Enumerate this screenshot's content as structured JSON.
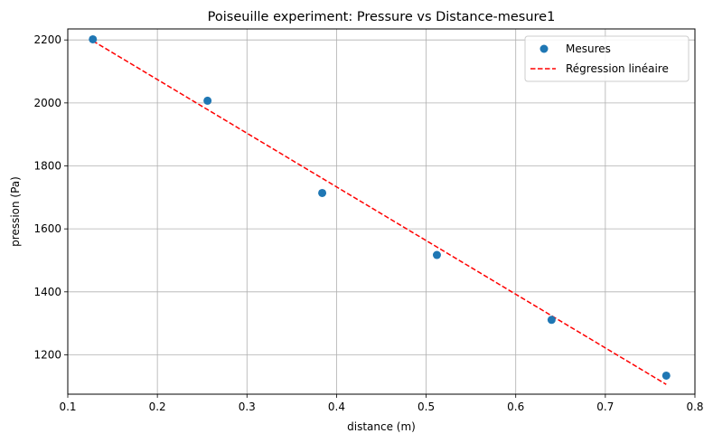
{
  "chart_data": {
    "type": "scatter",
    "title": "Poiseuille experiment: Pressure vs Distance-mesure1",
    "xlabel": "distance (m)",
    "ylabel": "pression (Pa)",
    "xlim": [
      0.1,
      0.8
    ],
    "ylim": [
      1075,
      2235
    ],
    "x_ticks": [
      "0.1",
      "0.2",
      "0.3",
      "0.4",
      "0.5",
      "0.6",
      "0.7",
      "0.8"
    ],
    "x_tick_values": [
      0.1,
      0.2,
      0.3,
      0.4,
      0.5,
      0.6,
      0.7,
      0.8
    ],
    "y_ticks": [
      "1200",
      "1400",
      "1600",
      "1800",
      "2000",
      "2200"
    ],
    "y_tick_values": [
      1200,
      1400,
      1600,
      1800,
      2000,
      2200
    ],
    "grid": true,
    "legend_position": "top-right",
    "series": [
      {
        "name": "Mesures",
        "kind": "points",
        "color": "#1f77b4",
        "x": [
          0.128,
          0.256,
          0.384,
          0.512,
          0.64,
          0.768
        ],
        "y": [
          2202,
          2007,
          1714,
          1517,
          1311,
          1134
        ]
      },
      {
        "name": "Régression linéaire",
        "kind": "dashed-line",
        "color": "#ff0000",
        "x": [
          0.128,
          0.768
        ],
        "y": [
          2197,
          1106
        ]
      }
    ]
  }
}
